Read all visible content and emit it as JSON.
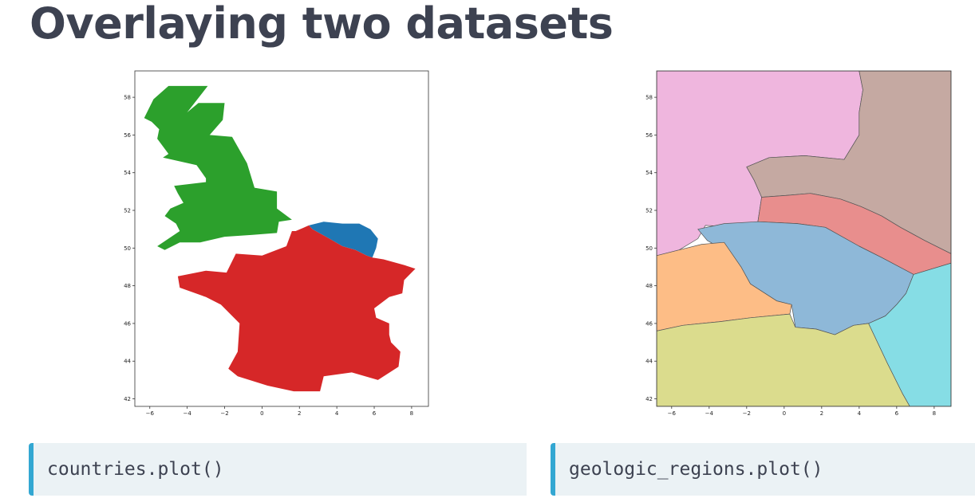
{
  "title": "Overlaying two datasets",
  "colors": {
    "title": "#3d4251",
    "code_background": "#ebf2f5",
    "code_accent": "#33a7d2"
  },
  "code": {
    "left": "countries.plot()",
    "right": "geologic_regions.plot()"
  },
  "chart_data": [
    {
      "type": "map",
      "xlim": [
        -6.8,
        8.9
      ],
      "ylim": [
        41.6,
        59.4
      ],
      "x_ticks": [
        -6,
        -4,
        -2,
        0,
        2,
        4,
        6,
        8
      ],
      "y_ticks": [
        42,
        44,
        46,
        48,
        50,
        52,
        54,
        56,
        58
      ],
      "grid": false,
      "polygons": [
        {
          "color": "#2ca02c",
          "points": [
            [
              -4.5,
              58.6
            ],
            [
              -2.9,
              58.6
            ],
            [
              -4.0,
              57.2
            ],
            [
              -3.4,
              57.7
            ],
            [
              -2.0,
              57.7
            ],
            [
              -2.1,
              56.8
            ],
            [
              -2.8,
              56.0
            ],
            [
              -1.6,
              55.9
            ],
            [
              -0.8,
              54.5
            ],
            [
              -0.4,
              53.2
            ],
            [
              0.8,
              53.0
            ],
            [
              0.8,
              52.1
            ],
            [
              1.6,
              51.5
            ],
            [
              0.9,
              51.4
            ],
            [
              0.8,
              50.8
            ],
            [
              -0.5,
              50.7
            ],
            [
              -2.0,
              50.6
            ],
            [
              -3.3,
              50.3
            ],
            [
              -4.4,
              50.3
            ],
            [
              -5.2,
              49.9
            ],
            [
              -5.6,
              50.1
            ],
            [
              -4.4,
              50.9
            ],
            [
              -4.6,
              51.3
            ],
            [
              -5.2,
              51.7
            ],
            [
              -4.9,
              52.1
            ],
            [
              -4.2,
              52.4
            ],
            [
              -4.5,
              52.9
            ],
            [
              -4.7,
              53.3
            ],
            [
              -3.0,
              53.5
            ],
            [
              -3.0,
              53.7
            ],
            [
              -3.5,
              54.4
            ],
            [
              -5.3,
              54.8
            ],
            [
              -5.0,
              55.0
            ],
            [
              -5.6,
              55.8
            ],
            [
              -5.5,
              56.3
            ],
            [
              -5.9,
              56.7
            ],
            [
              -6.3,
              56.9
            ],
            [
              -5.8,
              57.9
            ],
            [
              -5.0,
              58.6
            ]
          ]
        },
        {
          "color": "#1f77b4",
          "points": [
            [
              2.5,
              51.2
            ],
            [
              3.3,
              51.4
            ],
            [
              4.3,
              51.3
            ],
            [
              5.2,
              51.3
            ],
            [
              5.8,
              51.0
            ],
            [
              6.2,
              50.5
            ],
            [
              6.1,
              50.0
            ],
            [
              5.9,
              49.5
            ],
            [
              5.6,
              49.6
            ],
            [
              5.0,
              49.9
            ],
            [
              4.3,
              50.1
            ],
            [
              3.6,
              50.5
            ],
            [
              2.7,
              51.0
            ]
          ]
        },
        {
          "color": "#d62728",
          "points": [
            [
              1.8,
              50.9
            ],
            [
              2.5,
              51.2
            ],
            [
              2.7,
              51.0
            ],
            [
              3.6,
              50.5
            ],
            [
              4.3,
              50.1
            ],
            [
              5.0,
              49.9
            ],
            [
              5.6,
              49.6
            ],
            [
              5.9,
              49.5
            ],
            [
              6.5,
              49.4
            ],
            [
              7.6,
              49.1
            ],
            [
              8.2,
              48.9
            ],
            [
              7.6,
              48.3
            ],
            [
              7.5,
              47.6
            ],
            [
              6.8,
              47.4
            ],
            [
              6.0,
              46.8
            ],
            [
              6.1,
              46.3
            ],
            [
              6.8,
              46.0
            ],
            [
              6.8,
              45.4
            ],
            [
              6.9,
              45.0
            ],
            [
              7.4,
              44.5
            ],
            [
              7.3,
              43.7
            ],
            [
              6.2,
              43.0
            ],
            [
              4.8,
              43.4
            ],
            [
              3.3,
              43.2
            ],
            [
              3.1,
              42.4
            ],
            [
              1.7,
              42.4
            ],
            [
              0.3,
              42.7
            ],
            [
              -1.3,
              43.2
            ],
            [
              -1.8,
              43.6
            ],
            [
              -1.3,
              44.5
            ],
            [
              -1.2,
              46.0
            ],
            [
              -2.2,
              47.0
            ],
            [
              -3.0,
              47.4
            ],
            [
              -4.4,
              47.9
            ],
            [
              -4.5,
              48.5
            ],
            [
              -3.0,
              48.8
            ],
            [
              -1.9,
              48.7
            ],
            [
              -1.4,
              49.7
            ],
            [
              0.0,
              49.6
            ],
            [
              1.3,
              50.1
            ],
            [
              1.6,
              50.9
            ]
          ]
        }
      ]
    },
    {
      "type": "map",
      "xlim": [
        -6.8,
        8.9
      ],
      "ylim": [
        41.6,
        59.4
      ],
      "x_ticks": [
        -6,
        -4,
        -2,
        0,
        2,
        4,
        6,
        8
      ],
      "y_ticks": [
        42,
        44,
        46,
        48,
        50,
        52,
        54,
        56,
        58
      ],
      "grid": false,
      "polygons": [
        {
          "color": "#efb6de",
          "points": [
            [
              -6.8,
              59.4
            ],
            [
              4.0,
              59.4
            ],
            [
              4.2,
              58.4
            ],
            [
              4.0,
              57.2
            ],
            [
              4.0,
              56.0
            ],
            [
              3.2,
              54.7
            ],
            [
              1.1,
              54.9
            ],
            [
              -0.8,
              54.8
            ],
            [
              -2.0,
              54.3
            ],
            [
              -1.6,
              53.6
            ],
            [
              -1.2,
              52.7
            ],
            [
              -1.4,
              51.4
            ],
            [
              -2.2,
              51.1
            ],
            [
              -4.2,
              51.2
            ],
            [
              -4.6,
              50.5
            ],
            [
              -5.6,
              49.9
            ],
            [
              -6.8,
              49.6
            ]
          ]
        },
        {
          "color": "#c5a9a2",
          "points": [
            [
              4.0,
              59.4
            ],
            [
              8.9,
              59.4
            ],
            [
              8.9,
              49.7
            ],
            [
              7.5,
              50.4
            ],
            [
              6.2,
              51.1
            ],
            [
              5.2,
              51.7
            ],
            [
              4.1,
              52.2
            ],
            [
              3.0,
              52.6
            ],
            [
              1.4,
              52.9
            ],
            [
              0.2,
              52.8
            ],
            [
              -1.2,
              52.7
            ],
            [
              -1.6,
              53.6
            ],
            [
              -2.0,
              54.3
            ],
            [
              -0.8,
              54.8
            ],
            [
              1.1,
              54.9
            ],
            [
              3.2,
              54.7
            ],
            [
              4.0,
              56.0
            ],
            [
              4.0,
              57.2
            ],
            [
              4.2,
              58.4
            ]
          ]
        },
        {
          "color": "#e88e8d",
          "points": [
            [
              -1.2,
              52.7
            ],
            [
              0.2,
              52.8
            ],
            [
              1.4,
              52.9
            ],
            [
              3.0,
              52.6
            ],
            [
              4.1,
              52.2
            ],
            [
              5.2,
              51.7
            ],
            [
              6.2,
              51.1
            ],
            [
              7.5,
              50.4
            ],
            [
              8.9,
              49.7
            ],
            [
              8.9,
              49.2
            ],
            [
              6.9,
              48.6
            ],
            [
              5.2,
              49.5
            ],
            [
              4.0,
              50.1
            ],
            [
              2.2,
              51.1
            ],
            [
              0.7,
              51.3
            ],
            [
              -1.4,
              51.4
            ]
          ]
        },
        {
          "color": "#8eb8d8",
          "points": [
            [
              -4.6,
              51.0
            ],
            [
              -3.2,
              51.3
            ],
            [
              -1.4,
              51.4
            ],
            [
              0.7,
              51.3
            ],
            [
              2.2,
              51.1
            ],
            [
              4.0,
              50.1
            ],
            [
              5.2,
              49.5
            ],
            [
              6.9,
              48.6
            ],
            [
              6.5,
              47.6
            ],
            [
              6.0,
              47.0
            ],
            [
              5.4,
              46.4
            ],
            [
              4.5,
              46.0
            ],
            [
              3.7,
              45.9
            ],
            [
              2.7,
              45.4
            ],
            [
              1.7,
              45.7
            ],
            [
              0.6,
              45.8
            ],
            [
              0.4,
              47.0
            ],
            [
              -0.4,
              47.2
            ],
            [
              -1.8,
              48.1
            ],
            [
              -2.3,
              49.0
            ],
            [
              -3.2,
              49.9
            ],
            [
              -4.1,
              50.4
            ]
          ]
        },
        {
          "color": "#fdbd86",
          "points": [
            [
              -6.8,
              49.6
            ],
            [
              -5.6,
              49.9
            ],
            [
              -4.4,
              50.2
            ],
            [
              -3.2,
              50.3
            ],
            [
              -2.3,
              49.0
            ],
            [
              -1.8,
              48.1
            ],
            [
              -0.4,
              47.2
            ],
            [
              0.4,
              47.0
            ],
            [
              0.3,
              46.5
            ],
            [
              -1.8,
              46.3
            ],
            [
              -3.4,
              46.1
            ],
            [
              -5.4,
              45.9
            ],
            [
              -6.8,
              45.6
            ]
          ]
        },
        {
          "color": "#dbdc8d",
          "points": [
            [
              -6.8,
              45.6
            ],
            [
              -5.4,
              45.9
            ],
            [
              -3.4,
              46.1
            ],
            [
              -1.8,
              46.3
            ],
            [
              0.3,
              46.5
            ],
            [
              0.6,
              45.8
            ],
            [
              1.7,
              45.7
            ],
            [
              2.7,
              45.4
            ],
            [
              3.7,
              45.9
            ],
            [
              4.5,
              46.0
            ],
            [
              5.5,
              43.9
            ],
            [
              6.3,
              42.3
            ],
            [
              6.7,
              41.6
            ],
            [
              -6.8,
              41.6
            ]
          ]
        },
        {
          "color": "#86dde5",
          "points": [
            [
              4.5,
              46.0
            ],
            [
              5.4,
              46.4
            ],
            [
              6.0,
              47.0
            ],
            [
              6.5,
              47.6
            ],
            [
              6.9,
              48.6
            ],
            [
              8.9,
              49.2
            ],
            [
              8.9,
              41.6
            ],
            [
              6.7,
              41.6
            ],
            [
              6.3,
              42.3
            ],
            [
              5.5,
              43.9
            ]
          ]
        }
      ]
    }
  ]
}
